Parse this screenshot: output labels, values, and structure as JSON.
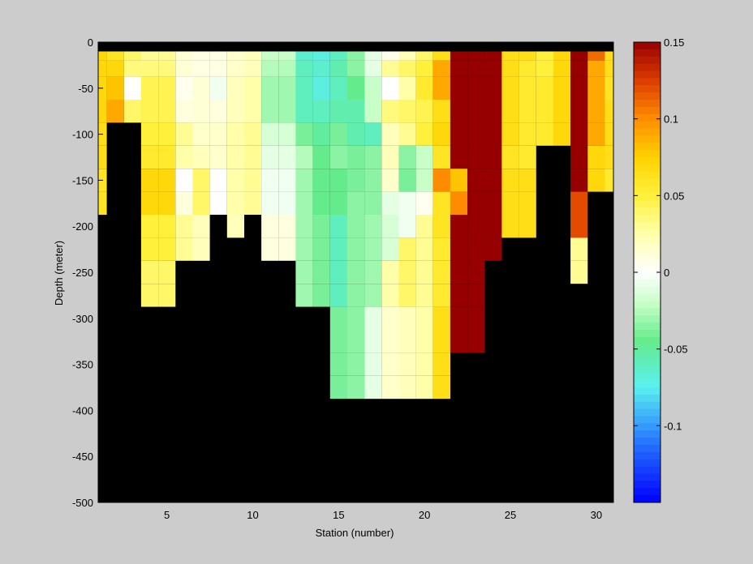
{
  "chart_data": {
    "type": "heatmap",
    "title": "",
    "xlabel": "Station (number)",
    "ylabel": "Depth (meter)",
    "xlim": [
      1,
      31
    ],
    "ylim": [
      -500,
      0
    ],
    "x_ticks": [
      5,
      10,
      15,
      20,
      25,
      30
    ],
    "y_ticks": [
      0,
      -50,
      -100,
      -150,
      -200,
      -250,
      -300,
      -350,
      -400,
      -450,
      -500
    ],
    "colorbar": {
      "range": [
        -0.15,
        0.15
      ],
      "ticks": [
        0.15,
        0.1,
        0.05,
        0,
        -0.05,
        -0.1
      ],
      "tick_labels": [
        "0.15",
        "0.1",
        "0.05",
        "0",
        "-0.05",
        "-0.1"
      ]
    },
    "land_color": "#000000",
    "missing_band_color": "#000000",
    "depth_bins": [
      -10,
      -25,
      -50,
      -75,
      -100,
      -125,
      -150,
      -175,
      -200,
      -225,
      -250,
      -275,
      -300,
      -325,
      -350,
      -375,
      -400
    ],
    "stations": [
      {
        "station": 1,
        "values": [
          0.07,
          0.07,
          0.07,
          0.07,
          0.065,
          0.065,
          0.06,
          0.06
        ]
      },
      {
        "station": 2,
        "values": [
          0.06,
          0.07,
          0.08,
          0.09
        ]
      },
      {
        "station": 3,
        "values": [
          0.04,
          0.035,
          0.0,
          0.04
        ]
      },
      {
        "station": 4,
        "values": [
          0.03,
          0.035,
          0.045,
          0.045,
          0.05,
          0.055,
          0.07,
          0.07,
          0.05,
          0.05,
          0.04,
          0.04
        ]
      },
      {
        "station": 5,
        "values": [
          0.03,
          0.035,
          0.045,
          0.045,
          0.05,
          0.055,
          0.07,
          0.07,
          0.05,
          0.05,
          0.04,
          0.04
        ]
      },
      {
        "station": 6,
        "values": [
          0.012,
          0.012,
          0.005,
          0.01,
          0.03,
          0.025,
          0.0,
          0.01,
          0.03,
          0.03
        ]
      },
      {
        "station": 7,
        "values": [
          0.008,
          0.008,
          0.012,
          0.012,
          0.015,
          0.02,
          0.04,
          0.04,
          0.02,
          0.02
        ]
      },
      {
        "station": 8,
        "values": [
          0.008,
          0.008,
          -0.005,
          0.01,
          0.015,
          0.015,
          0.0,
          0.0
        ]
      },
      {
        "station": 9,
        "values": [
          0.015,
          0.015,
          0.02,
          0.02,
          0.025,
          0.025,
          0.025,
          0.025,
          0.02
        ]
      },
      {
        "station": 10,
        "values": [
          0.02,
          0.02,
          0.025,
          0.025,
          0.03,
          0.03,
          0.03,
          0.03
        ]
      },
      {
        "station": 11,
        "values": [
          -0.02,
          -0.025,
          -0.03,
          -0.03,
          -0.015,
          -0.01,
          -0.005,
          -0.005,
          0.01,
          0.01
        ]
      },
      {
        "station": 12,
        "values": [
          -0.02,
          -0.025,
          -0.03,
          -0.03,
          -0.015,
          -0.01,
          -0.005,
          -0.005,
          0.01,
          0.01
        ]
      },
      {
        "station": 13,
        "values": [
          -0.065,
          -0.06,
          -0.06,
          -0.06,
          -0.04,
          -0.025,
          -0.03,
          -0.03,
          -0.03,
          -0.03,
          -0.03,
          -0.03
        ]
      },
      {
        "station": 14,
        "values": [
          -0.07,
          -0.065,
          -0.07,
          -0.06,
          -0.05,
          -0.045,
          -0.045,
          -0.045,
          -0.04,
          -0.04,
          -0.04,
          -0.04
        ]
      },
      {
        "station": 15,
        "values": [
          -0.06,
          -0.055,
          -0.06,
          -0.055,
          -0.04,
          -0.035,
          -0.045,
          -0.045,
          -0.06,
          -0.06,
          -0.06,
          -0.06,
          -0.04,
          -0.04,
          -0.04,
          -0.04
        ]
      },
      {
        "station": 16,
        "values": [
          -0.035,
          -0.035,
          -0.045,
          -0.055,
          -0.055,
          -0.04,
          -0.04,
          -0.035,
          -0.035,
          -0.035,
          -0.035,
          -0.035,
          -0.035,
          -0.035,
          -0.035,
          -0.035
        ]
      },
      {
        "station": 17,
        "values": [
          -0.01,
          -0.01,
          -0.02,
          -0.02,
          -0.06,
          -0.035,
          -0.035,
          -0.035,
          -0.03,
          -0.03,
          -0.03,
          -0.03,
          -0.01,
          -0.01,
          -0.01,
          -0.01
        ]
      },
      {
        "station": 18,
        "values": [
          0.005,
          0.03,
          0.0,
          0.035,
          0.02,
          0.02,
          0.015,
          -0.01,
          -0.015,
          -0.015,
          0.025,
          0.025,
          0.015,
          0.015,
          0.015,
          0.015
        ]
      },
      {
        "station": 19,
        "values": [
          0.02,
          0.04,
          0.025,
          0.04,
          0.03,
          -0.035,
          -0.04,
          -0.005,
          -0.005,
          0.04,
          0.04,
          0.04,
          0.02,
          0.02,
          0.02,
          0.02
        ]
      },
      {
        "station": 20,
        "values": [
          0.04,
          0.05,
          0.055,
          0.045,
          0.05,
          -0.02,
          -0.02,
          0.005,
          0.03,
          0.03,
          0.03,
          0.03,
          0.025,
          0.025,
          0.025,
          0.025
        ]
      },
      {
        "station": 21,
        "values": [
          0.065,
          0.09,
          0.09,
          0.065,
          0.07,
          0.06,
          0.1,
          0.06,
          0.06,
          0.055,
          0.055,
          0.055,
          0.065,
          0.065,
          0.065,
          0.065
        ]
      },
      {
        "station": 22,
        "values": [
          0.15,
          0.15,
          0.15,
          0.15,
          0.15,
          0.15,
          0.08,
          0.1,
          0.15,
          0.15,
          0.15,
          0.15,
          0.15,
          0.15
        ]
      },
      {
        "station": 23,
        "values": [
          0.15,
          0.15,
          0.15,
          0.15,
          0.15,
          0.15,
          0.15,
          0.15,
          0.15,
          0.15,
          0.15,
          0.15,
          0.15,
          0.15
        ]
      },
      {
        "station": 24,
        "values": [
          0.15,
          0.15,
          0.15,
          0.15,
          0.15,
          0.15,
          0.15,
          0.15,
          0.15,
          0.15
        ]
      },
      {
        "station": 25,
        "values": [
          0.065,
          0.065,
          0.065,
          0.065,
          0.065,
          0.06,
          0.065,
          0.065,
          0.065
        ]
      },
      {
        "station": 26,
        "values": [
          0.065,
          0.055,
          0.055,
          0.055,
          0.055,
          0.055,
          0.065,
          0.065,
          0.065
        ]
      },
      {
        "station": 27,
        "values": [
          0.05,
          0.05,
          0.055,
          0.055,
          0.055
        ]
      },
      {
        "station": 28,
        "values": [
          0.07,
          0.07,
          0.07,
          0.07,
          0.07
        ]
      },
      {
        "station": 29,
        "values": [
          0.15,
          0.15,
          0.15,
          0.15,
          0.15,
          0.15,
          0.15,
          0.12,
          0.12,
          0.03,
          0.03
        ]
      },
      {
        "station": 30,
        "values": [
          0.11,
          0.09,
          0.09,
          0.09,
          0.09,
          0.07,
          0.07
        ]
      },
      {
        "station": 31,
        "values": [
          0.065,
          0.065,
          0.06,
          0.065,
          0.065,
          0.065,
          0.055
        ]
      }
    ]
  }
}
